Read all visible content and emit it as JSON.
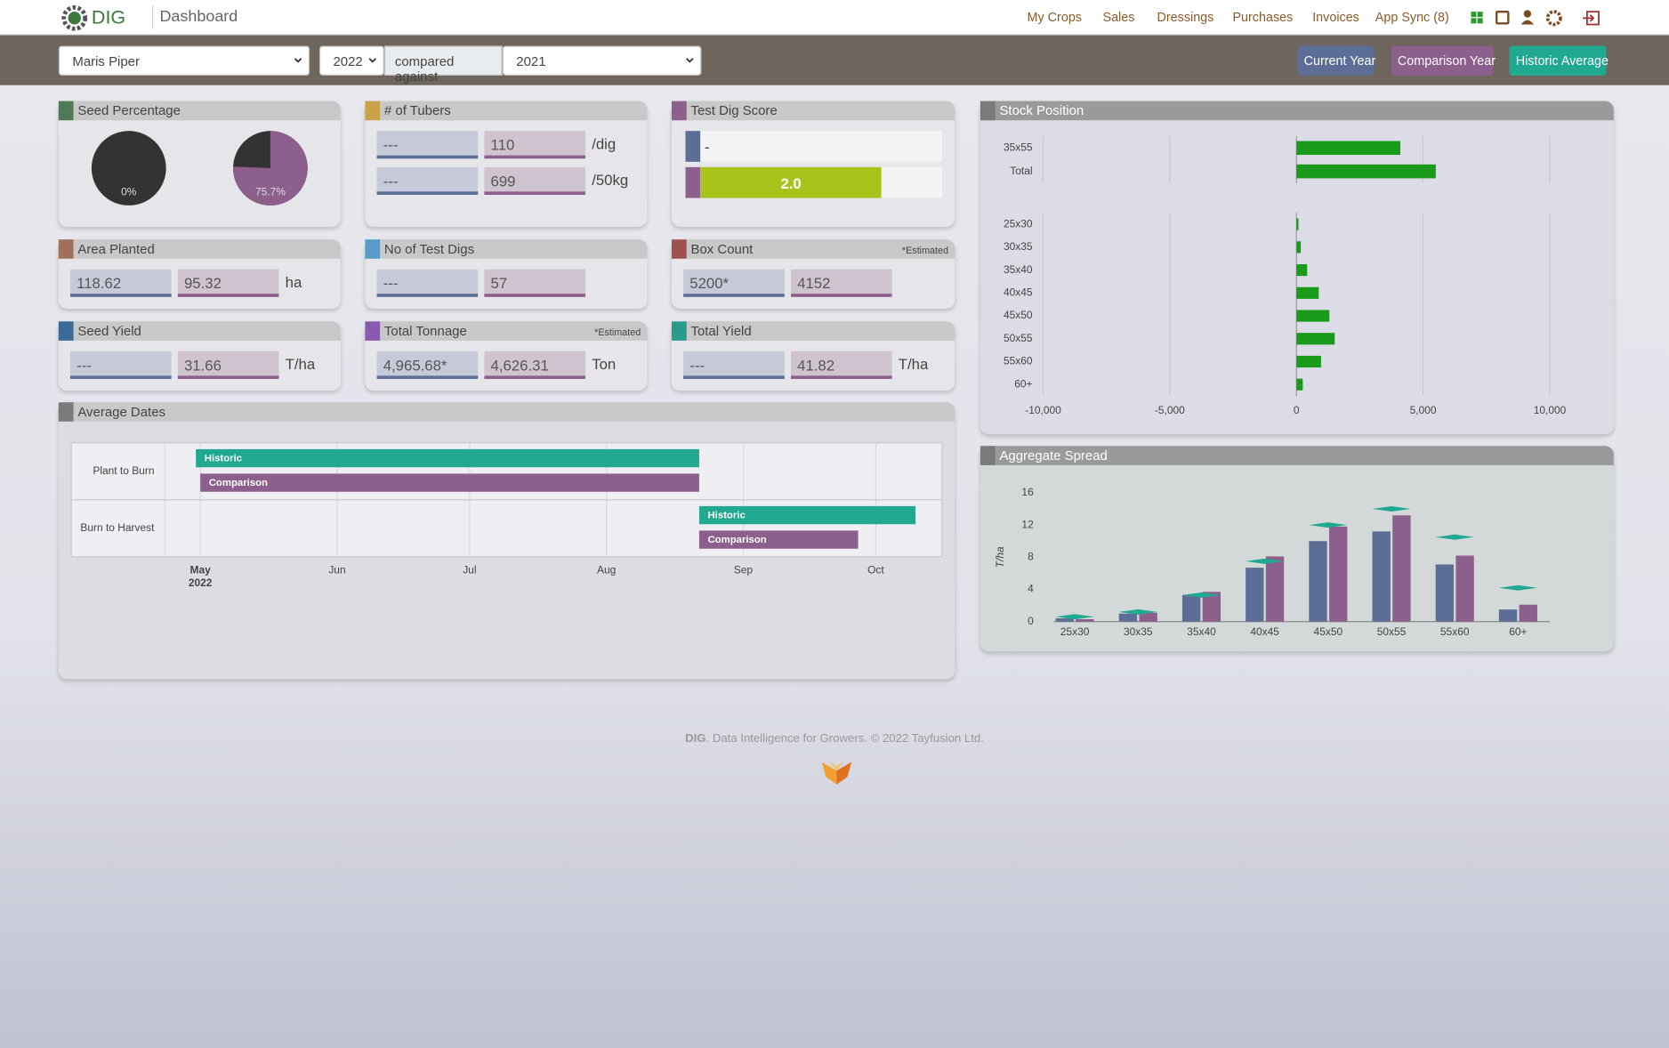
{
  "nav": {
    "brand": "DIG",
    "page": "Dashboard",
    "links": [
      "My Crops",
      "Sales",
      "Dressings",
      "Purchases",
      "Invoices",
      "App Sync (8)"
    ]
  },
  "filters": {
    "variety": "Maris Piper",
    "year": "2022",
    "compared_label": "compared against",
    "compare_year": "2021"
  },
  "legend_buttons": [
    {
      "label": "Current Year",
      "color": "#5d6e96"
    },
    {
      "label": "Comparison Year",
      "color": "#8c5f8c"
    },
    {
      "label": "Historic Average",
      "color": "#20a890"
    }
  ],
  "seed_percentage": {
    "title": "Seed Percentage",
    "color": "#4f7a55",
    "values": [
      0,
      75.7
    ],
    "value_labels": [
      "0%",
      "75.7%"
    ],
    "colors": [
      "#8c5f8c",
      "#8c5f8c"
    ],
    "rest_color": "#333333"
  },
  "tubers": {
    "title": "# of Tubers",
    "color": "#c9a24a",
    "rows": [
      {
        "fields": [
          "---",
          "110"
        ],
        "unit": "/dig"
      },
      {
        "fields": [
          "---",
          "699"
        ],
        "unit": "/50kg"
      }
    ]
  },
  "test_dig": {
    "title": "Test Dig Score",
    "color": "#8c5f8c",
    "rows": [
      {
        "color": "#5d6e96",
        "value": "-"
      },
      {
        "color": "#8c5f8c",
        "value": "2.0",
        "bar_color": "#a8c41a"
      }
    ]
  },
  "cards": [
    {
      "title": "Area Planted",
      "color": "#a0705a",
      "fields": [
        "118.62",
        "95.32"
      ],
      "unit": "ha"
    },
    {
      "title": "No of Test Digs",
      "color": "#5a9ac8",
      "fields": [
        "---",
        "57"
      ]
    },
    {
      "title": "Box Count",
      "color": "#a05050",
      "fields": [
        "5200*",
        "4152"
      ],
      "note": "*Estimated"
    },
    {
      "title": "Seed Yield",
      "color": "#3a6a9a",
      "fields": [
        "---",
        "31.66"
      ],
      "unit": "T/ha"
    },
    {
      "title": "Total Tonnage",
      "color": "#8a5ab0",
      "fields": [
        "4,965.68*",
        "4,626.31"
      ],
      "unit": "Ton",
      "note": "*Estimated"
    },
    {
      "title": "Total Yield",
      "color": "#2a9a8a",
      "fields": [
        "---",
        "41.82"
      ],
      "unit": "T/ha"
    }
  ],
  "average_dates": {
    "title": "Average Dates",
    "color": "#7a7a7a",
    "chart_data": {
      "type": "gantt",
      "categories": [
        "Plant to Burn",
        "Burn to Harvest"
      ],
      "series": [
        {
          "name": "Historic",
          "color": "#20a890",
          "start": [
            "2022-04-30",
            "2022-08-22"
          ],
          "end": [
            "2022-08-22",
            "2022-10-10"
          ]
        },
        {
          "name": "Comparison",
          "color": "#8c5f8c",
          "start": [
            "2022-05-01",
            "2022-08-22"
          ],
          "end": [
            "2022-08-22",
            "2022-09-27"
          ]
        }
      ],
      "xlim": [
        "2022-04-23",
        "2022-10-16"
      ],
      "xticks": [
        {
          "value": "2022-05-01",
          "label": "May",
          "sublabel": "2022"
        },
        {
          "value": "2022-06-01",
          "label": "Jun"
        },
        {
          "value": "2022-07-01",
          "label": "Jul"
        },
        {
          "value": "2022-08-01",
          "label": "Aug"
        },
        {
          "value": "2022-09-01",
          "label": "Sep"
        },
        {
          "value": "2022-10-01",
          "label": "Oct"
        }
      ],
      "grid": true
    }
  },
  "stock_position": {
    "title": "Stock Position",
    "color": "#7a7a7a",
    "chart_data": [
      {
        "type": "hbar",
        "categories": [
          "35x55",
          "Total"
        ],
        "values": [
          4100,
          5500
        ],
        "color": "#1a9a1a",
        "xlim": [
          -10000,
          10000
        ],
        "xticks": [
          -10000,
          -5000,
          0,
          5000,
          10000
        ],
        "grid": true
      },
      {
        "type": "hbar",
        "categories": [
          "25x30",
          "30x35",
          "35x40",
          "40x45",
          "45x50",
          "50x55",
          "55x60",
          "60+"
        ],
        "values": [
          80,
          170,
          420,
          880,
          1300,
          1510,
          970,
          250
        ],
        "color": "#1a9a1a",
        "xlim": [
          -10000,
          10000
        ],
        "xticks": [
          {
            "value": -10000,
            "label": "-10,000"
          },
          {
            "value": -5000,
            "label": "-5,000"
          },
          0,
          {
            "value": 5000,
            "label": "5,000"
          },
          {
            "value": 10000,
            "label": "10,000"
          }
        ],
        "grid": true
      }
    ]
  },
  "aggregate_spread": {
    "title": "Aggregate Spread",
    "color": "#7a7a7a",
    "chart_data": {
      "type": "bar",
      "categories": [
        "25x30",
        "30x35",
        "35x40",
        "40x45",
        "45x50",
        "50x55",
        "55x60",
        "60+"
      ],
      "y_label": "T/ha",
      "series": [
        {
          "color": "#5d6e96",
          "values": [
            0.4,
            1.0,
            3.3,
            6.7,
            10,
            11.2,
            7.1,
            1.5
          ]
        },
        {
          "color": "#8c5f8c",
          "values": [
            0.3,
            1.1,
            3.7,
            8.1,
            11.8,
            13.2,
            8.2,
            2.1
          ]
        },
        {
          "color": "#20a890",
          "marker": "diamond",
          "values": [
            0.6,
            1.2,
            3.3,
            7.5,
            12,
            14,
            10.5,
            4.2
          ]
        }
      ],
      "ylim": [
        0,
        16
      ],
      "yticks": [
        0,
        4,
        8,
        12,
        16
      ]
    }
  },
  "footer": {
    "brand": "DIG",
    "text": ". Data Intelligence for Growers. © 2022 Tayfusion Ltd."
  }
}
